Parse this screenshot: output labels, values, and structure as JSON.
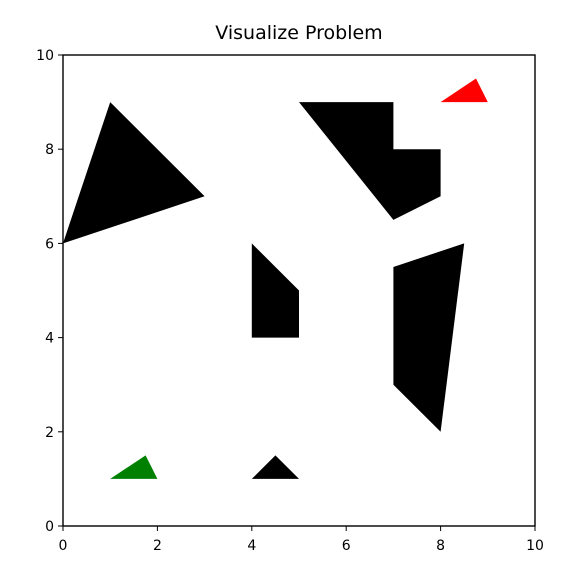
{
  "chart_data": {
    "type": "scatter",
    "title": "Visualize Problem",
    "xlabel": "",
    "ylabel": "",
    "xlim": [
      0,
      10
    ],
    "ylim": [
      0,
      10
    ],
    "x_ticks": [
      0,
      2,
      4,
      6,
      8,
      10
    ],
    "y_ticks": [
      0,
      2,
      4,
      6,
      8,
      10
    ],
    "x_tick_labels": [
      "0",
      "2",
      "4",
      "6",
      "8",
      "10"
    ],
    "y_tick_labels": [
      "0",
      "2",
      "4",
      "6",
      "8",
      "10"
    ],
    "grid": false,
    "polygons": [
      {
        "role": "obstacle",
        "color": "#000000",
        "points": [
          [
            0,
            6
          ],
          [
            1,
            9
          ],
          [
            3,
            7
          ]
        ]
      },
      {
        "role": "obstacle",
        "color": "#000000",
        "points": [
          [
            5,
            9
          ],
          [
            7,
            9
          ],
          [
            7,
            8
          ],
          [
            8,
            8
          ],
          [
            8,
            7
          ],
          [
            7,
            6.5
          ]
        ]
      },
      {
        "role": "obstacle",
        "color": "#000000",
        "points": [
          [
            4,
            6
          ],
          [
            5,
            5
          ],
          [
            5,
            4
          ],
          [
            4,
            4
          ]
        ]
      },
      {
        "role": "obstacle",
        "color": "#000000",
        "points": [
          [
            7,
            5.5
          ],
          [
            8.5,
            6
          ],
          [
            8,
            2
          ],
          [
            7,
            3
          ]
        ]
      },
      {
        "role": "obstacle",
        "color": "#000000",
        "points": [
          [
            4,
            1
          ],
          [
            4.5,
            1.5
          ],
          [
            5,
            1
          ]
        ]
      },
      {
        "role": "start",
        "color": "#008000",
        "points": [
          [
            1,
            1
          ],
          [
            1.75,
            1.5
          ],
          [
            2,
            1
          ]
        ]
      },
      {
        "role": "goal",
        "color": "#ff0000",
        "points": [
          [
            8,
            9
          ],
          [
            8.75,
            9.5
          ],
          [
            9,
            9
          ]
        ]
      }
    ]
  }
}
